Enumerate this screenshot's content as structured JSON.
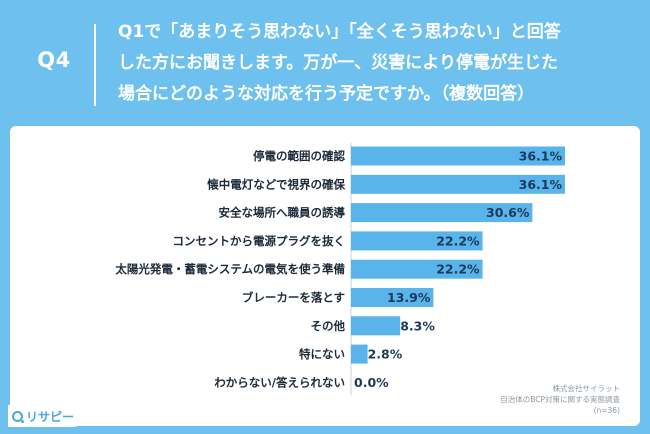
{
  "header": {
    "question_number": "Q4",
    "question_lines": [
      "Q1で「あまりそう思わない」「全くそう思わない」と回答",
      "した方にお聞きします。万が一、災害により停電が生じた",
      "場合にどのような対応を行う予定ですか。（複数回答）"
    ]
  },
  "colors": {
    "background": "#6ec1ee",
    "bar": "#5ab4ec",
    "panel": "#ffffff"
  },
  "source": {
    "company": "株式会社サイラット",
    "survey": "自治体のBCP対策に関する実態調査",
    "sample": "(n=36)"
  },
  "logo": {
    "text": "リサピー",
    "icon": "magnifier-icon"
  },
  "chart_data": {
    "type": "bar",
    "orientation": "horizontal",
    "categories": [
      "停電の範囲の確認",
      "懐中電灯などで視界の確保",
      "安全な場所へ職員の誘導",
      "コンセントから電源プラグを抜く",
      "太陽光発電・蓄電システムの電気を使う準備",
      "ブレーカーを落とす",
      "その他",
      "特にない",
      "わからない/答えられない"
    ],
    "values": [
      36.1,
      36.1,
      30.6,
      22.2,
      22.2,
      13.9,
      8.3,
      2.8,
      0.0
    ],
    "value_labels": [
      "36.1%",
      "36.1%",
      "30.6%",
      "22.2%",
      "22.2%",
      "13.9%",
      "8.3%",
      "2.8%",
      "0.0%"
    ],
    "xlim": [
      0,
      36.1
    ],
    "grid": false,
    "legend": "none"
  }
}
